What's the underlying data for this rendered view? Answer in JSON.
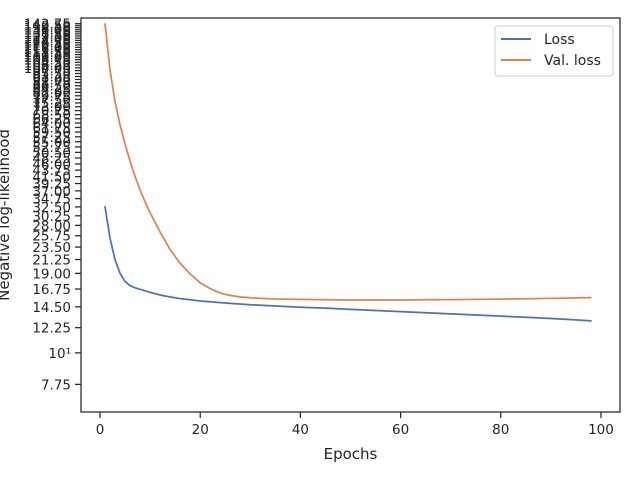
{
  "chart_data": {
    "type": "line",
    "xlabel": "Epochs",
    "ylabel": "Negative log-likelihood",
    "xlim": [
      -3.8,
      103.8
    ],
    "ylim": [
      6.2,
      149.5
    ],
    "yscale": "log",
    "xticks": [
      0,
      20,
      40,
      60,
      80,
      100
    ],
    "xtick_labels": [
      "0",
      "20",
      "40",
      "60",
      "80",
      "100"
    ],
    "yticks": [
      7.75,
      10,
      12.25,
      14.5,
      16.75,
      19.0,
      21.25,
      23.5,
      25.75,
      28.0,
      30.25,
      32.5,
      34.75,
      37.0,
      39.25,
      41.5,
      43.75,
      46.0,
      48.25,
      50.5,
      52.75,
      55.0,
      57.25,
      59.5,
      61.75,
      64.0,
      66.25,
      68.5,
      70.75,
      73.0,
      75.25,
      77.5,
      79.75,
      82.0,
      84.25,
      86.5,
      88.75,
      91.0,
      93.25,
      95.5,
      97.75,
      100.0,
      102.25,
      104.5,
      106.75,
      109.0,
      111.25,
      113.5,
      115.75,
      118.0,
      120.25,
      122.5,
      124.75,
      127.0,
      129.25,
      131.5,
      133.75,
      136.0,
      138.25,
      140.5,
      142.75
    ],
    "ytick_labels": [
      "7.75",
      "10¹",
      "12.25",
      "14.50",
      "16.75",
      "19.00",
      "21.25",
      "23.50",
      "25.75",
      "28.00",
      "30.25",
      "32.50",
      "34.75",
      "37.00",
      "39.25",
      "41.50",
      "43.75",
      "46.00",
      "48.25",
      "50.50",
      "52.75",
      "55.00",
      "57.25",
      "59.50",
      "61.75",
      "64.00",
      "66.25",
      "68.50",
      "70.75",
      "73.00",
      "75.25",
      "77.50",
      "79.75",
      "82.00",
      "84.25",
      "86.50",
      "88.75",
      "91.00",
      "93.25",
      "95.50",
      "97.75",
      "100.00",
      "102.25",
      "104.50",
      "106.75",
      "109.00",
      "111.25",
      "113.50",
      "115.75",
      "118.00",
      "120.25",
      "122.50",
      "124.75",
      "127.00",
      "129.25",
      "131.50",
      "133.75",
      "136.00",
      "138.25",
      "140.50",
      "142.75"
    ],
    "legend_position": "upper right",
    "grid": false,
    "series": [
      {
        "name": "Loss",
        "color": "#4c72b0",
        "x": [
          1,
          2,
          3,
          4,
          5,
          6,
          7,
          8,
          9,
          10,
          12,
          14,
          16,
          18,
          20,
          25,
          30,
          35,
          40,
          45,
          50,
          55,
          60,
          65,
          70,
          75,
          80,
          85,
          90,
          95,
          98
        ],
        "y": [
          32.5,
          25.2,
          21.2,
          19.0,
          17.8,
          17.2,
          16.9,
          16.7,
          16.5,
          16.3,
          15.95,
          15.7,
          15.5,
          15.35,
          15.2,
          14.95,
          14.75,
          14.6,
          14.45,
          14.35,
          14.2,
          14.08,
          13.95,
          13.82,
          13.7,
          13.58,
          13.45,
          13.33,
          13.2,
          13.05,
          12.95
        ]
      },
      {
        "name": "Val. loss",
        "color": "#dd8452",
        "x": [
          1,
          2,
          3,
          4,
          5,
          6,
          7,
          8,
          9,
          10,
          12,
          14,
          16,
          18,
          20,
          22,
          24,
          26,
          28,
          30,
          35,
          40,
          45,
          50,
          55,
          60,
          65,
          70,
          75,
          80,
          85,
          90,
          95,
          98
        ],
        "y": [
          142.5,
          98.0,
          76.0,
          63.0,
          54.0,
          47.0,
          41.5,
          37.2,
          33.8,
          31.0,
          26.5,
          23.0,
          20.6,
          18.9,
          17.6,
          16.8,
          16.2,
          15.9,
          15.7,
          15.6,
          15.45,
          15.4,
          15.35,
          15.33,
          15.33,
          15.33,
          15.35,
          15.37,
          15.4,
          15.43,
          15.47,
          15.52,
          15.58,
          15.62
        ]
      }
    ]
  }
}
